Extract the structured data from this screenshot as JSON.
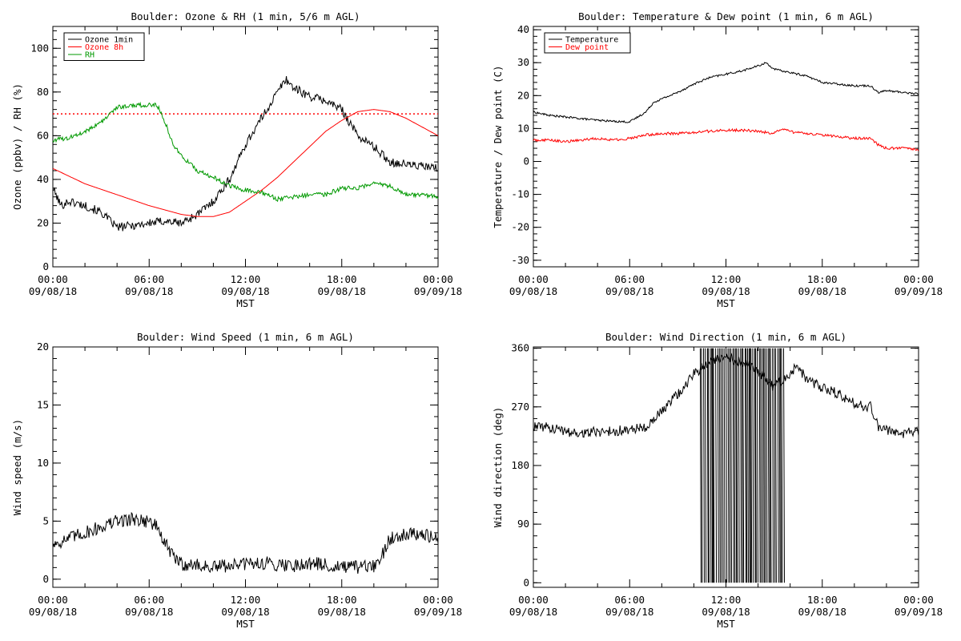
{
  "chart_data": [
    {
      "type": "line",
      "title": "Boulder: Ozone & RH (1 min, 5/6 m AGL)",
      "xlabel": "MST",
      "ylabel": "Ozone (ppbv) / RH (%)",
      "xlim": [
        0,
        24
      ],
      "ylim": [
        0,
        110
      ],
      "yticks": [
        0,
        20,
        40,
        60,
        80,
        100
      ],
      "x_ticks": [
        {
          "time": "00:00",
          "date": "09/08/18"
        },
        {
          "time": "06:00",
          "date": "09/08/18"
        },
        {
          "time": "12:00",
          "date": "09/08/18"
        },
        {
          "time": "18:00",
          "date": "09/08/18"
        },
        {
          "time": "00:00",
          "date": "09/09/18"
        }
      ],
      "reference_line": {
        "y": 70,
        "color": "#ff0000",
        "style": "dotted"
      },
      "legend": {
        "placement": "top-left",
        "entries": [
          "Ozone 1min",
          "Ozone 8h",
          "RH"
        ]
      },
      "series": [
        {
          "name": "Ozone 1min",
          "color": "#000000",
          "noise": 2,
          "x": [
            0,
            0.5,
            1,
            2,
            3,
            4,
            5,
            6,
            7,
            8,
            9,
            10,
            11,
            12,
            13,
            14,
            14.5,
            15,
            16,
            17,
            18,
            19,
            20,
            21,
            22,
            23,
            24
          ],
          "y": [
            36,
            28,
            30,
            28,
            25,
            18,
            19,
            20,
            21,
            20,
            24,
            30,
            40,
            56,
            68,
            80,
            86,
            82,
            78,
            76,
            72,
            60,
            55,
            48,
            47,
            46,
            45
          ]
        },
        {
          "name": "Ozone 8h",
          "color": "#ff0000",
          "noise": 0,
          "x": [
            0,
            2,
            4,
            6,
            8,
            9,
            10,
            11,
            12,
            13,
            14,
            15,
            16,
            17,
            18,
            19,
            20,
            21,
            22,
            23,
            24
          ],
          "y": [
            45,
            38,
            33,
            28,
            24,
            23,
            23,
            25,
            30,
            35,
            41,
            48,
            55,
            62,
            67,
            71,
            72,
            71,
            68,
            64,
            60
          ]
        },
        {
          "name": "RH",
          "color": "#009900",
          "noise": 1,
          "x": [
            0,
            1,
            2,
            3,
            4,
            5,
            6,
            6.5,
            7,
            7.5,
            8,
            9,
            10,
            11,
            12,
            13,
            14,
            15,
            16,
            17,
            18,
            19,
            20,
            21,
            22,
            23,
            24
          ],
          "y": [
            58,
            59,
            62,
            66,
            73,
            74,
            74,
            74,
            66,
            56,
            51,
            44,
            41,
            37,
            35,
            34,
            31,
            32,
            33,
            33,
            36,
            36,
            38,
            37,
            33,
            33,
            32
          ]
        }
      ]
    },
    {
      "type": "line",
      "title": "Boulder: Temperature & Dew point (1 min, 6 m AGL)",
      "xlabel": "MST",
      "ylabel": "Temperature / Dew point (C)",
      "xlim": [
        0,
        24
      ],
      "ylim": [
        -32,
        41
      ],
      "yticks": [
        -30,
        -20,
        -10,
        0,
        10,
        20,
        30,
        40
      ],
      "x_ticks": [
        {
          "time": "00:00",
          "date": "09/08/18"
        },
        {
          "time": "06:00",
          "date": "09/08/18"
        },
        {
          "time": "12:00",
          "date": "09/08/18"
        },
        {
          "time": "18:00",
          "date": "09/08/18"
        },
        {
          "time": "00:00",
          "date": "09/09/18"
        }
      ],
      "legend": {
        "placement": "top-left",
        "entries": [
          "Temperature",
          "Dew point"
        ]
      },
      "series": [
        {
          "name": "Temperature",
          "color": "#000000",
          "noise": 0.3,
          "x": [
            0,
            1,
            2,
            3,
            4,
            5,
            6,
            7,
            7.5,
            8,
            9,
            10,
            11,
            12,
            13,
            14,
            14.5,
            15,
            16,
            17,
            18,
            19,
            20,
            21,
            21.5,
            22,
            23,
            24
          ],
          "y": [
            15,
            14,
            13.5,
            13,
            12.5,
            12.2,
            12,
            15,
            18,
            19,
            21,
            23.5,
            25.5,
            26.5,
            27.5,
            29,
            30,
            28,
            27,
            26,
            24,
            23.5,
            23,
            23,
            21,
            21.5,
            21,
            20.5
          ]
        },
        {
          "name": "Dew point",
          "color": "#ff0000",
          "noise": 0.4,
          "x": [
            0,
            1,
            2,
            3,
            4,
            5,
            6,
            7,
            8,
            9,
            10,
            11,
            12,
            13,
            14,
            15,
            15.5,
            16,
            17,
            18,
            19,
            20,
            21,
            21.5,
            22,
            23,
            24
          ],
          "y": [
            6.5,
            6.5,
            6,
            6.5,
            7,
            6.5,
            7,
            8,
            8.5,
            8.5,
            8.8,
            9.2,
            9.5,
            9.5,
            9.2,
            8.5,
            10,
            9,
            8.5,
            8,
            7.5,
            7,
            7,
            5,
            4,
            4,
            3.5
          ]
        }
      ]
    },
    {
      "type": "line",
      "title": "Boulder: Wind Speed (1 min, 6 m AGL)",
      "xlabel": "MST",
      "ylabel": "Wind speed (m/s)",
      "xlim": [
        0,
        24
      ],
      "ylim": [
        -0.7,
        20
      ],
      "yticks": [
        0,
        5,
        10,
        15,
        20
      ],
      "x_ticks": [
        {
          "time": "00:00",
          "date": "09/08/18"
        },
        {
          "time": "06:00",
          "date": "09/08/18"
        },
        {
          "time": "12:00",
          "date": "09/08/18"
        },
        {
          "time": "18:00",
          "date": "09/08/18"
        },
        {
          "time": "00:00",
          "date": "09/09/18"
        }
      ],
      "series": [
        {
          "name": "",
          "color": "#000000",
          "noise": 0.6,
          "x": [
            0,
            1,
            2,
            3,
            4,
            5,
            6,
            6.5,
            7,
            7.5,
            8,
            9,
            10,
            11,
            12,
            13,
            14,
            15,
            16,
            17,
            18,
            19,
            20,
            20.5,
            21,
            22,
            23,
            24
          ],
          "y": [
            3,
            3.5,
            4,
            4.5,
            5,
            5.2,
            5,
            4.5,
            3,
            2,
            1.3,
            1.2,
            1,
            1.2,
            1.3,
            1.4,
            1.3,
            1.2,
            1.4,
            1.2,
            1,
            1,
            1.1,
            2,
            3.5,
            4,
            3.8,
            3.5
          ]
        }
      ]
    },
    {
      "type": "line",
      "title": "Boulder: Wind Direction (1 min, 6 m AGL)",
      "xlabel": "MST",
      "ylabel": "Wind direction (deg)",
      "xlim": [
        0,
        24
      ],
      "ylim": [
        -7,
        362
      ],
      "yticks": [
        0,
        90,
        180,
        270,
        360
      ],
      "x_ticks": [
        {
          "time": "00:00",
          "date": "09/08/18"
        },
        {
          "time": "06:00",
          "date": "09/08/18"
        },
        {
          "time": "12:00",
          "date": "09/08/18"
        },
        {
          "time": "18:00",
          "date": "09/08/18"
        },
        {
          "time": "00:00",
          "date": "09/09/18"
        }
      ],
      "wrap_spikes": {
        "from": 10.4,
        "to": 15.6,
        "color": "#000000"
      },
      "series": [
        {
          "name": "",
          "color": "#000000",
          "noise": 8,
          "x": [
            0,
            1,
            2,
            3,
            4,
            5,
            6,
            7,
            8,
            9,
            9.5,
            10,
            11,
            12,
            13,
            14,
            15,
            16,
            16.5,
            17,
            18,
            19,
            20,
            21,
            21.5,
            22,
            23,
            24
          ],
          "y": [
            240,
            238,
            232,
            230,
            232,
            233,
            235,
            240,
            262,
            290,
            305,
            320,
            340,
            345,
            340,
            325,
            300,
            320,
            335,
            310,
            300,
            290,
            275,
            270,
            240,
            235,
            230,
            232
          ]
        }
      ]
    }
  ]
}
